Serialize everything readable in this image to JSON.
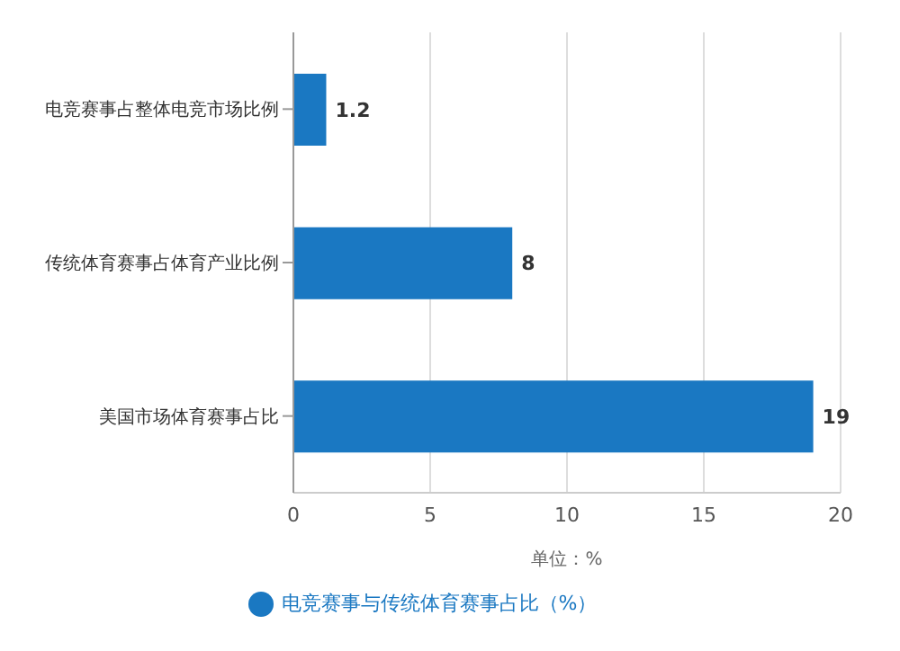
{
  "chart_data": {
    "type": "bar",
    "orientation": "horizontal",
    "categories": [
      "电竞赛事占整体电竞市场比例",
      "传统体育赛事占体育产业比例",
      "美国市场体育赛事占比"
    ],
    "series": [
      {
        "name": "电竞赛事与传统体育赛事占比（%）",
        "color": "#1a78c2",
        "values": [
          1.2,
          8,
          19
        ]
      }
    ],
    "xlim": [
      0,
      20
    ],
    "xticks": [
      0,
      5,
      10,
      15,
      20
    ],
    "xlabel": "单位：%",
    "grid": "x",
    "legend": "bottom",
    "data_labels": true
  }
}
